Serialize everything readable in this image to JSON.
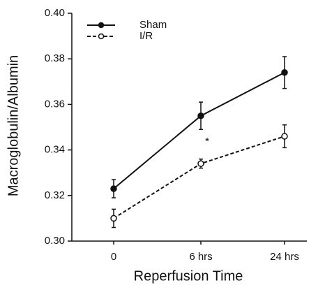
{
  "chart_data": {
    "type": "line",
    "x_label": "Reperfusion Time",
    "y_label": "Macroglobulin/Albumin",
    "categories": [
      "0",
      "6 hrs",
      "24 hrs"
    ],
    "series": [
      {
        "name": "Sham",
        "color": "#111111",
        "line_style": "solid",
        "marker": "filled",
        "values": [
          0.323,
          0.355,
          0.374
        ],
        "errors": [
          0.004,
          0.006,
          0.007
        ]
      },
      {
        "name": "I/R",
        "color": "#111111",
        "line_style": "dashed",
        "marker": "open",
        "values": [
          0.31,
          0.334,
          0.346
        ],
        "errors": [
          0.004,
          0.002,
          0.005
        ]
      }
    ],
    "ylim": [
      0.3,
      0.4
    ],
    "yticks": [
      {
        "value": 0.3,
        "label": "0.30"
      },
      0.32,
      0.34,
      0.36,
      0.38,
      {
        "value": 0.4,
        "label": "0.40"
      }
    ],
    "annotation": "*",
    "legend": "top-left"
  }
}
